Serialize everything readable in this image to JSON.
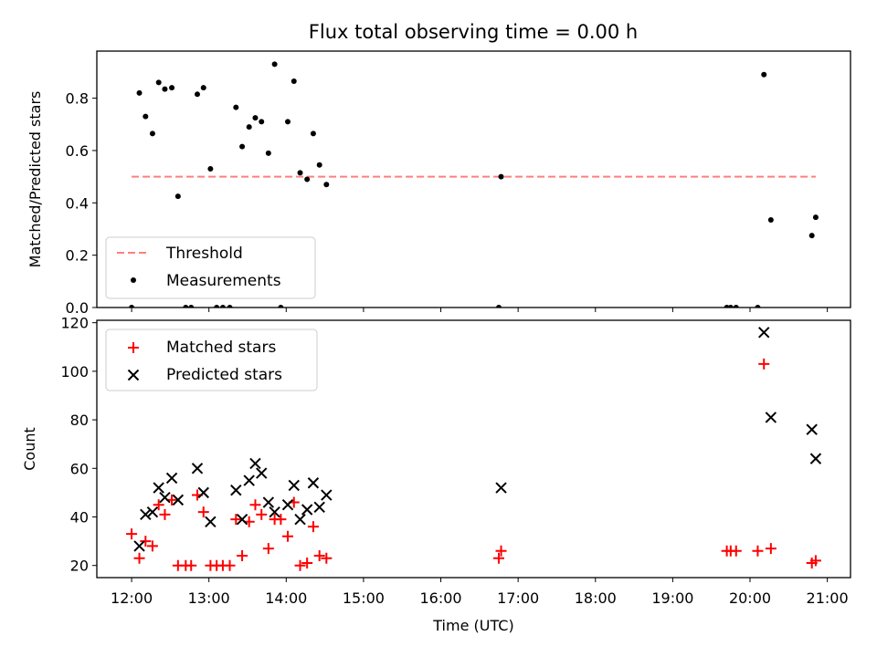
{
  "title": "Flux total observing time = 0.00 h",
  "colors": {
    "threshold": "#ff7f7f",
    "measurements": "#000000",
    "matched": "#ff0000",
    "predicted": "#000000",
    "axes": "#000000",
    "background": "#ffffff"
  },
  "chart_data": [
    {
      "type": "scatter",
      "ylabel": "Matched/Predicted stars",
      "xlim": [
        11.55,
        21.3
      ],
      "ylim": [
        0,
        0.98
      ],
      "yticks": [
        0.0,
        0.2,
        0.4,
        0.6,
        0.8
      ],
      "ytick_labels": [
        "0.0",
        "0.2",
        "0.4",
        "0.6",
        "0.8"
      ],
      "legend": {
        "position": "lower-left",
        "entries": [
          "Threshold",
          "Measurements"
        ]
      },
      "threshold": {
        "name": "Threshold",
        "y": 0.5,
        "x": [
          12.0,
          20.85
        ],
        "style": "dashed"
      },
      "series": [
        {
          "name": "Measurements",
          "marker": "dot",
          "x": [
            12.0,
            12.1,
            12.18,
            12.27,
            12.35,
            12.43,
            12.52,
            12.6,
            12.7,
            12.77,
            12.85,
            12.93,
            13.02,
            13.1,
            13.18,
            13.27,
            13.35,
            13.43,
            13.52,
            13.6,
            13.68,
            13.77,
            13.85,
            13.93,
            14.02,
            14.1,
            14.18,
            14.27,
            14.35,
            14.43,
            14.52,
            16.75,
            16.78,
            19.7,
            19.75,
            19.82,
            20.1,
            20.18,
            20.27,
            20.8,
            20.85
          ],
          "y": [
            0.0,
            0.82,
            0.73,
            0.665,
            0.86,
            0.835,
            0.84,
            0.425,
            0.0,
            0.0,
            0.815,
            0.84,
            0.53,
            0.0,
            0.0,
            0.0,
            0.765,
            0.615,
            0.69,
            0.725,
            0.71,
            0.59,
            0.93,
            0.0,
            0.71,
            0.865,
            0.515,
            0.49,
            0.665,
            0.545,
            0.47,
            0.0,
            0.5,
            0.0,
            0.0,
            0.0,
            0.0,
            0.89,
            0.335,
            0.275,
            0.345
          ]
        }
      ]
    },
    {
      "type": "scatter",
      "xlabel": "Time (UTC)",
      "ylabel": "Count",
      "xlim": [
        11.55,
        21.3
      ],
      "ylim": [
        15,
        121
      ],
      "yticks": [
        20,
        40,
        60,
        80,
        100,
        120
      ],
      "ytick_labels": [
        "20",
        "40",
        "60",
        "80",
        "100",
        "120"
      ],
      "xticks": [
        12,
        13,
        14,
        15,
        16,
        17,
        18,
        19,
        20,
        21
      ],
      "xtick_labels": [
        "12:00",
        "13:00",
        "14:00",
        "15:00",
        "16:00",
        "17:00",
        "18:00",
        "19:00",
        "20:00",
        "21:00"
      ],
      "legend": {
        "position": "upper-left",
        "entries": [
          "Matched stars",
          "Predicted stars"
        ]
      },
      "series": [
        {
          "name": "Matched stars",
          "marker": "plus",
          "x": [
            12.0,
            12.1,
            12.18,
            12.27,
            12.35,
            12.43,
            12.52,
            12.6,
            12.7,
            12.77,
            12.85,
            12.93,
            13.02,
            13.1,
            13.18,
            13.27,
            13.35,
            13.43,
            13.52,
            13.6,
            13.68,
            13.77,
            13.85,
            13.93,
            14.02,
            14.1,
            14.18,
            14.27,
            14.35,
            14.43,
            14.52,
            16.75,
            16.78,
            19.7,
            19.75,
            19.82,
            20.1,
            20.18,
            20.27,
            20.8,
            20.85
          ],
          "y": [
            33,
            23,
            30,
            28,
            45,
            41,
            47,
            20,
            20,
            20,
            49,
            42,
            20,
            20,
            20,
            20,
            39,
            24,
            38,
            45,
            41,
            27,
            39,
            39,
            32,
            46,
            20,
            21,
            36,
            24,
            23,
            23,
            26,
            26,
            26,
            26,
            26,
            103,
            27,
            21,
            22
          ]
        },
        {
          "name": "Predicted stars",
          "marker": "x",
          "x": [
            12.1,
            12.18,
            12.27,
            12.35,
            12.43,
            12.52,
            12.6,
            12.85,
            12.93,
            13.02,
            13.35,
            13.43,
            13.52,
            13.6,
            13.68,
            13.77,
            13.85,
            14.02,
            14.1,
            14.18,
            14.27,
            14.35,
            14.43,
            14.52,
            16.78,
            20.18,
            20.27,
            20.8,
            20.85
          ],
          "y": [
            28,
            41,
            42,
            52,
            48,
            56,
            47,
            60,
            50,
            38,
            51,
            39,
            55,
            62,
            58,
            46,
            42,
            45,
            53,
            39,
            43,
            54,
            44,
            49,
            52,
            116,
            81,
            76,
            64
          ]
        }
      ]
    }
  ]
}
